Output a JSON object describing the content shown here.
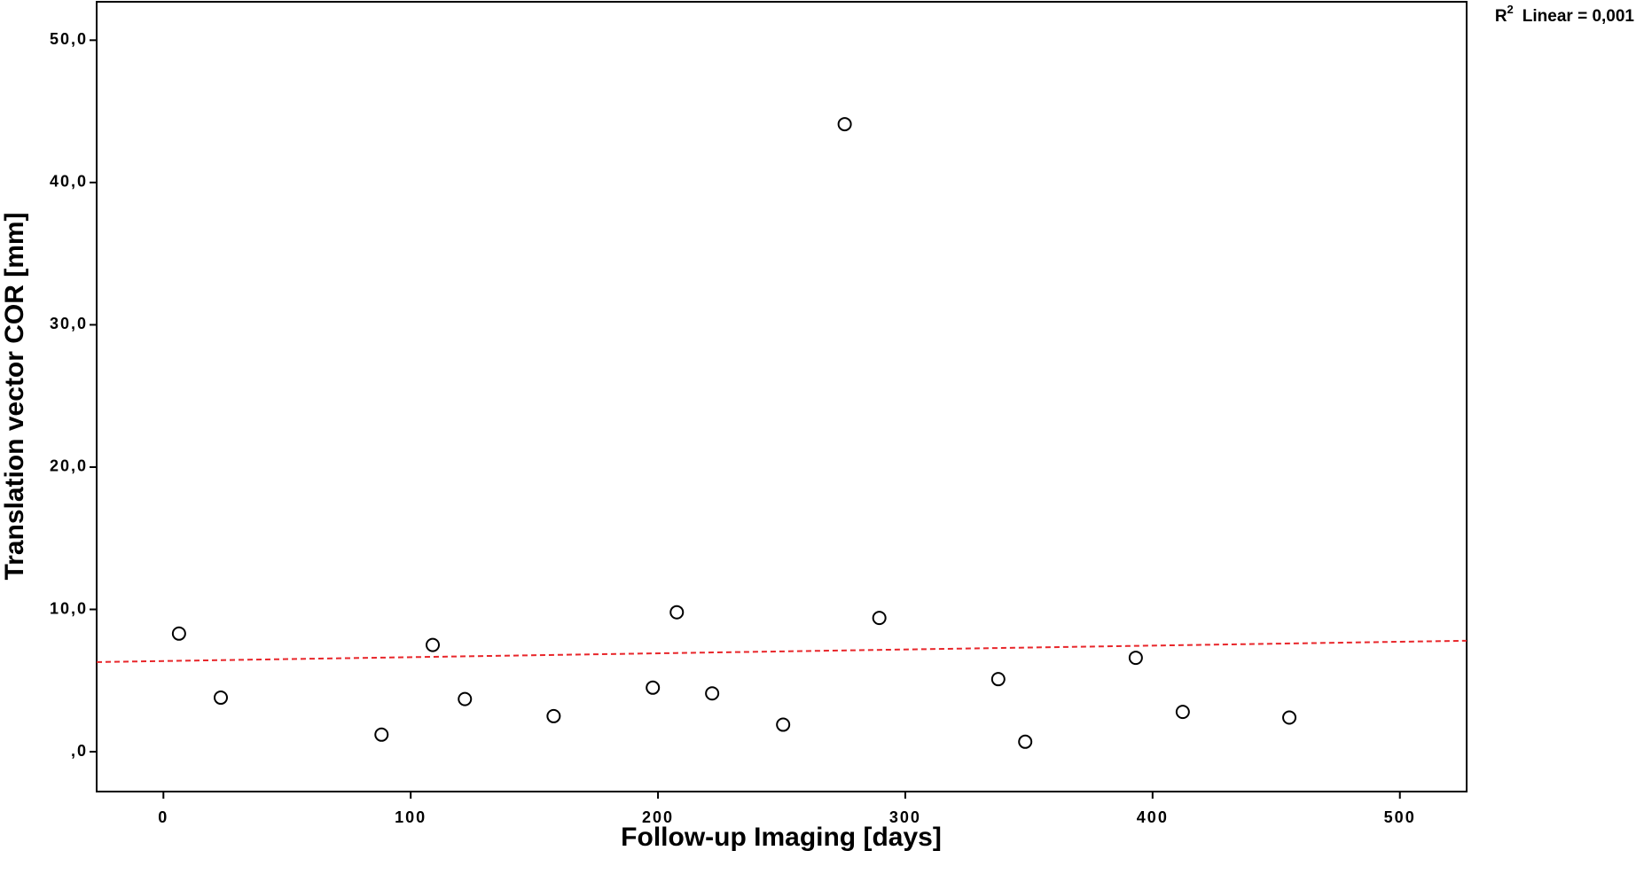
{
  "chart_data": {
    "type": "scatter",
    "xlabel": "Follow-up Imaging [days]",
    "ylabel": "Translation vector COR [mm]",
    "annotation": {
      "base": "R",
      "sup": "2",
      "text": "Linear = 0,001"
    },
    "x": [
      6.3,
      23.2,
      88.2,
      108.9,
      121.9,
      157.8,
      197.9,
      207.6,
      221.9,
      250.6,
      275.5,
      289.5,
      337.6,
      348.5,
      393.2,
      412.2,
      455.3
    ],
    "values": [
      8.3,
      3.8,
      1.2,
      7.5,
      3.7,
      2.5,
      4.5,
      9.8,
      4.1,
      1.9,
      44.1,
      9.4,
      5.1,
      0.7,
      6.6,
      2.8,
      2.4
    ],
    "fit_line": {
      "x": [
        -27,
        527
      ],
      "y": [
        6.3,
        7.8
      ],
      "color": "#e8262a"
    },
    "marker_color": "#000000",
    "xlim": [
      -27,
      527
    ],
    "ylim": [
      -2.8,
      52.7
    ],
    "xticks": [
      0,
      100,
      200,
      300,
      400,
      500
    ],
    "yticks": [
      {
        "value": 0,
        "label": ",0"
      },
      {
        "value": 10,
        "label": "10,0"
      },
      {
        "value": 20,
        "label": "20,0"
      },
      {
        "value": 30,
        "label": "30,0"
      },
      {
        "value": 40,
        "label": "40,0"
      },
      {
        "value": 50,
        "label": "50,0"
      }
    ]
  }
}
